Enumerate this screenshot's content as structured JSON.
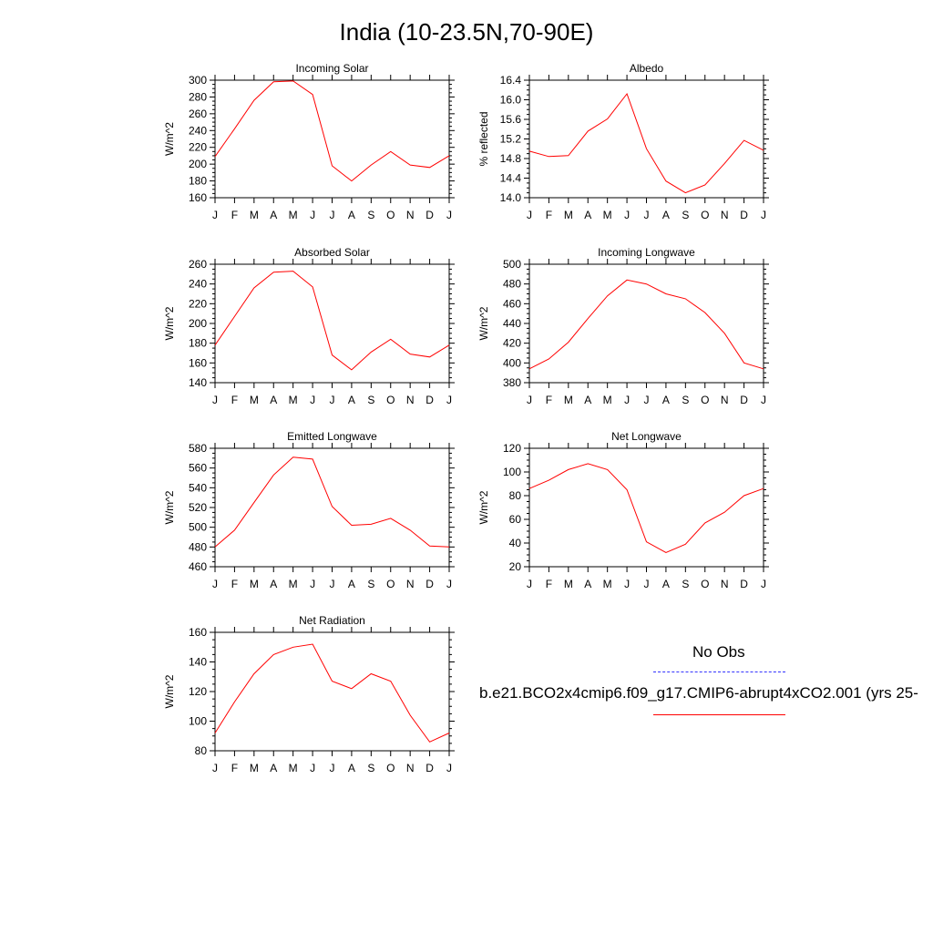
{
  "figure": {
    "title": "India (10-23.5N,70-90E)",
    "legend": {
      "obs_label": "No Obs",
      "model_label": "b.e21.BCO2x4cmip6.f09_g17.CMIP6-abrupt4xCO2.001 (yrs 25-",
      "obs_color": "#3333ff",
      "model_color": "#ff0000"
    }
  },
  "chart_data": [
    {
      "type": "line",
      "title": "Incoming Solar",
      "ylabel": "W/m^2",
      "categories": [
        "J",
        "F",
        "M",
        "A",
        "M",
        "J",
        "J",
        "A",
        "S",
        "O",
        "N",
        "D",
        "J"
      ],
      "ylim": [
        160,
        300
      ],
      "yticks": [
        160,
        180,
        200,
        220,
        240,
        260,
        280,
        300
      ],
      "ytick_labels": [
        "160",
        "180",
        "200",
        "220",
        "240",
        "260",
        "280",
        "300"
      ],
      "series": [
        {
          "values": [
            209,
            242,
            276,
            298,
            299,
            283,
            198,
            180,
            199,
            215,
            199,
            196,
            210
          ]
        }
      ]
    },
    {
      "type": "line",
      "title": "Albedo",
      "ylabel": "% reflected",
      "categories": [
        "J",
        "F",
        "M",
        "A",
        "M",
        "J",
        "J",
        "A",
        "S",
        "O",
        "N",
        "D",
        "J"
      ],
      "ylim": [
        14.0,
        16.4
      ],
      "yticks": [
        14.0,
        14.4,
        14.8,
        15.2,
        15.6,
        16.0,
        16.4
      ],
      "ytick_labels": [
        "14.0",
        "14.4",
        "14.8",
        "15.2",
        "15.6",
        "16.0",
        "16.4"
      ],
      "series": [
        {
          "values": [
            14.95,
            14.84,
            14.86,
            15.36,
            15.61,
            16.12,
            15.0,
            14.34,
            14.1,
            14.26,
            14.7,
            15.17,
            14.97
          ]
        }
      ]
    },
    {
      "type": "line",
      "title": "Absorbed Solar",
      "ylabel": "W/m^2",
      "categories": [
        "J",
        "F",
        "M",
        "A",
        "M",
        "J",
        "J",
        "A",
        "S",
        "O",
        "N",
        "D",
        "J"
      ],
      "ylim": [
        140,
        260
      ],
      "yticks": [
        140,
        160,
        180,
        200,
        220,
        240,
        260
      ],
      "ytick_labels": [
        "140",
        "160",
        "180",
        "200",
        "220",
        "240",
        "260"
      ],
      "series": [
        {
          "values": [
            178,
            207,
            236,
            252,
            253,
            237,
            168,
            153,
            171,
            184,
            169,
            166,
            178
          ]
        }
      ]
    },
    {
      "type": "line",
      "title": "Incoming Longwave",
      "ylabel": "W/m^2",
      "categories": [
        "J",
        "F",
        "M",
        "A",
        "M",
        "J",
        "J",
        "A",
        "S",
        "O",
        "N",
        "D",
        "J"
      ],
      "ylim": [
        380,
        500
      ],
      "yticks": [
        380,
        400,
        420,
        440,
        460,
        480,
        500
      ],
      "ytick_labels": [
        "380",
        "400",
        "420",
        "440",
        "460",
        "480",
        "500"
      ],
      "series": [
        {
          "values": [
            394,
            404,
            421,
            445,
            468,
            484,
            480,
            470,
            465,
            451,
            430,
            400,
            394
          ]
        }
      ]
    },
    {
      "type": "line",
      "title": "Emitted Longwave",
      "ylabel": "W/m^2",
      "categories": [
        "J",
        "F",
        "M",
        "A",
        "M",
        "J",
        "J",
        "A",
        "S",
        "O",
        "N",
        "D",
        "J"
      ],
      "ylim": [
        460,
        580
      ],
      "yticks": [
        460,
        480,
        500,
        520,
        540,
        560,
        580
      ],
      "ytick_labels": [
        "460",
        "480",
        "500",
        "520",
        "540",
        "560",
        "580"
      ],
      "series": [
        {
          "values": [
            480,
            497,
            525,
            553,
            571,
            569,
            521,
            502,
            503,
            509,
            497,
            481,
            480
          ]
        }
      ]
    },
    {
      "type": "line",
      "title": "Net Longwave",
      "ylabel": "W/m^2",
      "categories": [
        "J",
        "F",
        "M",
        "A",
        "M",
        "J",
        "J",
        "A",
        "S",
        "O",
        "N",
        "D",
        "J"
      ],
      "ylim": [
        20,
        120
      ],
      "yticks": [
        20,
        40,
        60,
        80,
        100,
        120
      ],
      "ytick_labels": [
        "20",
        "40",
        "60",
        "80",
        "100",
        "120"
      ],
      "series": [
        {
          "values": [
            86,
            93,
            102,
            107,
            102,
            85,
            41,
            32,
            39,
            57,
            66,
            80,
            86
          ]
        }
      ]
    },
    {
      "type": "line",
      "title": "Net Radiation",
      "ylabel": "W/m^2",
      "categories": [
        "J",
        "F",
        "M",
        "A",
        "M",
        "J",
        "J",
        "A",
        "S",
        "O",
        "N",
        "D",
        "J"
      ],
      "ylim": [
        80,
        160
      ],
      "yticks": [
        80,
        100,
        120,
        140,
        160
      ],
      "ytick_labels": [
        "80",
        "100",
        "120",
        "140",
        "160"
      ],
      "series": [
        {
          "values": [
            92,
            113,
            132,
            145,
            150,
            152,
            127,
            122,
            132,
            127,
            104,
            86,
            92
          ]
        }
      ]
    }
  ]
}
